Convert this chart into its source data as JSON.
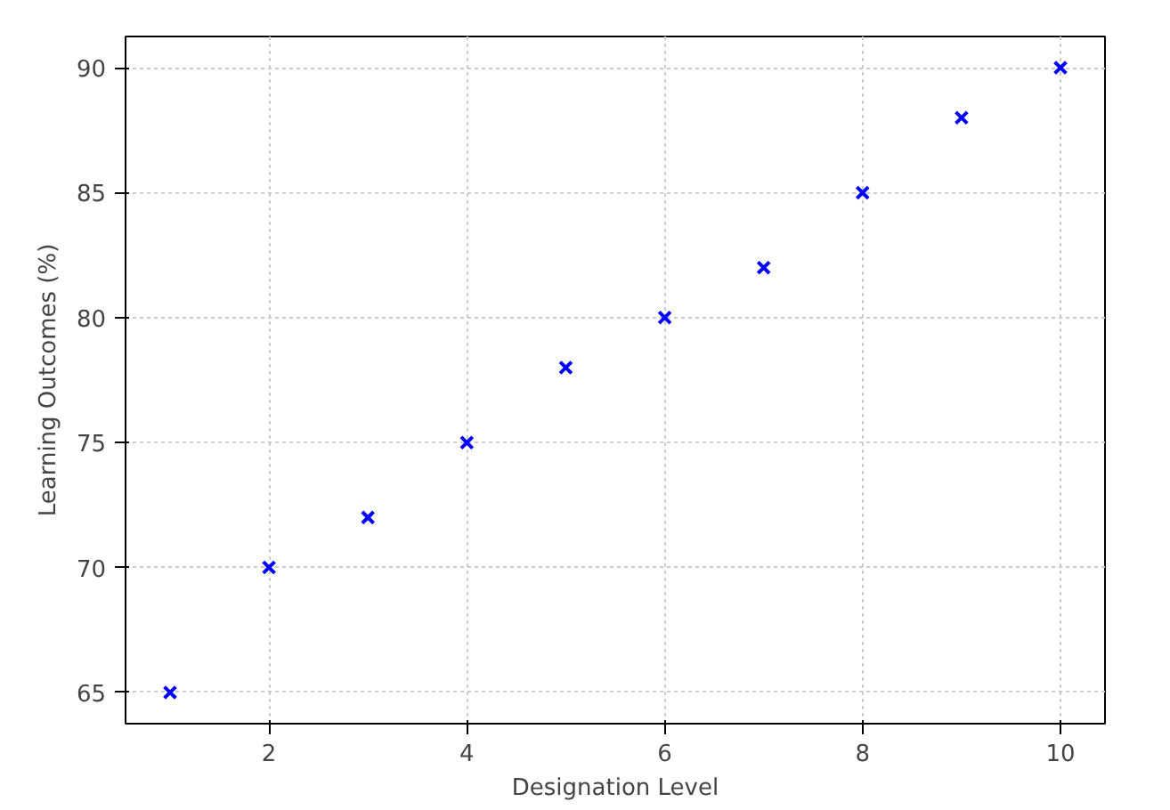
{
  "chart_data": {
    "type": "scatter",
    "xlabel": "Designation Level",
    "ylabel": "Learning Outcomes (%)",
    "x": [
      1,
      2,
      3,
      4,
      5,
      6,
      7,
      8,
      9,
      10
    ],
    "series": [
      {
        "color": "#0000ff",
        "values": [
          65,
          70,
          72,
          75,
          78,
          80,
          82,
          85,
          88,
          90
        ]
      }
    ],
    "marker": "cross",
    "grid": true,
    "xlim": [
      0.55,
      10.45
    ],
    "ylim": [
      63.75,
      91.25
    ],
    "xticks": [
      2,
      4,
      6,
      8,
      10
    ],
    "yticks": [
      65,
      70,
      75,
      80,
      85,
      90
    ]
  }
}
